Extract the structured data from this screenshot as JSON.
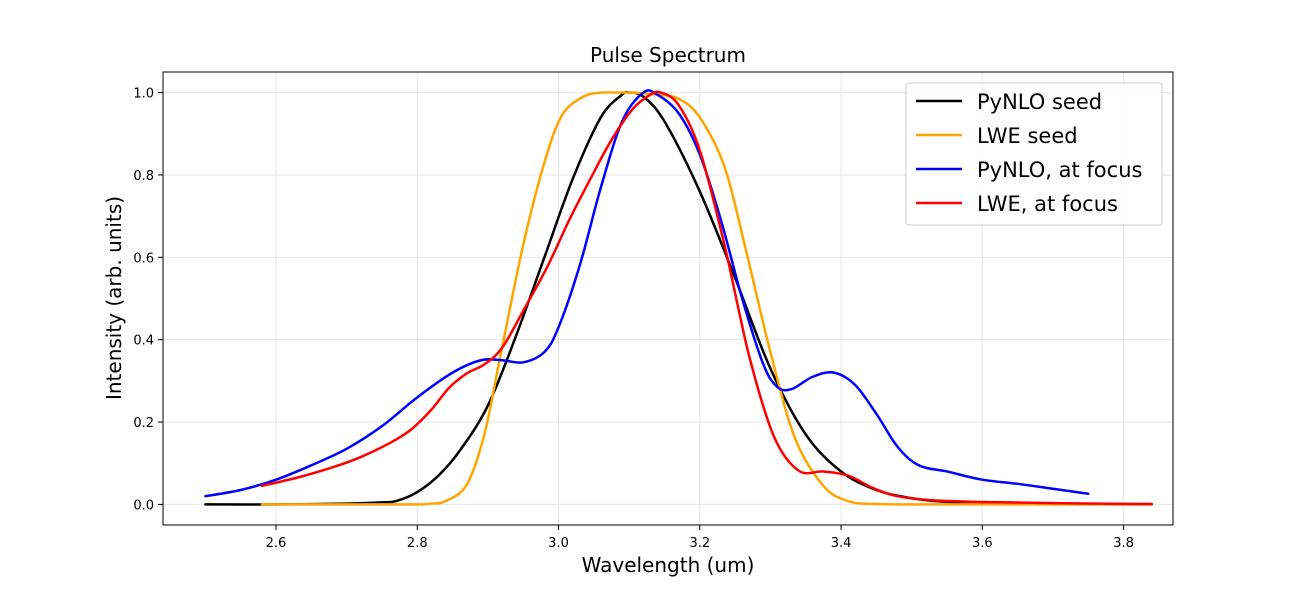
{
  "chart_data": {
    "type": "line",
    "title": "Pulse Spectrum",
    "xlabel": "Wavelength (um)",
    "ylabel": "Intensity (arb. units)",
    "xlim": [
      2.44,
      3.87
    ],
    "ylim": [
      -0.05,
      1.05
    ],
    "xticks": [
      2.6,
      2.8,
      3.0,
      3.2,
      3.4,
      3.6,
      3.8
    ],
    "yticks": [
      0.0,
      0.2,
      0.4,
      0.6,
      0.8,
      1.0
    ],
    "grid": true,
    "legend_position": "top-right",
    "series": [
      {
        "name": "PyNLO seed",
        "color": "#000000",
        "x": [
          2.5,
          2.6,
          2.7,
          2.75,
          2.77,
          2.8,
          2.83,
          2.86,
          2.9,
          2.94,
          2.98,
          3.02,
          3.06,
          3.09,
          3.1,
          3.12,
          3.15,
          3.2,
          3.25,
          3.3,
          3.35,
          3.4,
          3.45,
          3.5,
          3.55,
          3.6,
          3.7,
          3.8,
          3.84
        ],
        "y": [
          0.0,
          0.0,
          0.002,
          0.005,
          0.008,
          0.03,
          0.07,
          0.13,
          0.24,
          0.41,
          0.6,
          0.79,
          0.94,
          0.995,
          1.0,
          0.99,
          0.93,
          0.76,
          0.55,
          0.33,
          0.17,
          0.08,
          0.035,
          0.015,
          0.006,
          0.003,
          0.001,
          0.0,
          0.0
        ]
      },
      {
        "name": "LWE seed",
        "color": "#ffa500",
        "x": [
          2.58,
          2.7,
          2.8,
          2.82,
          2.84,
          2.87,
          2.895,
          2.92,
          2.95,
          2.98,
          3.005,
          3.035,
          3.06,
          3.08,
          3.1,
          3.14,
          3.17,
          3.2,
          3.235,
          3.265,
          3.3,
          3.335,
          3.375,
          3.41,
          3.45,
          3.55,
          3.7,
          3.84
        ],
        "y": [
          0.0,
          0.0,
          0.0,
          0.002,
          0.008,
          0.048,
          0.17,
          0.38,
          0.63,
          0.83,
          0.945,
          0.99,
          1.0,
          1.0,
          1.0,
          0.995,
          0.985,
          0.94,
          0.82,
          0.62,
          0.37,
          0.16,
          0.045,
          0.008,
          0.001,
          0.0,
          0.0,
          0.0
        ]
      },
      {
        "name": "PyNLO, at focus",
        "color": "#0000ff",
        "x": [
          2.5,
          2.55,
          2.6,
          2.65,
          2.7,
          2.75,
          2.8,
          2.85,
          2.89,
          2.92,
          2.95,
          2.98,
          3.0,
          3.03,
          3.06,
          3.09,
          3.12,
          3.14,
          3.17,
          3.2,
          3.23,
          3.26,
          3.29,
          3.31,
          3.33,
          3.36,
          3.39,
          3.42,
          3.45,
          3.48,
          3.51,
          3.55,
          3.6,
          3.65,
          3.7,
          3.75
        ],
        "y": [
          0.02,
          0.035,
          0.06,
          0.095,
          0.135,
          0.19,
          0.26,
          0.32,
          0.35,
          0.35,
          0.345,
          0.37,
          0.43,
          0.58,
          0.77,
          0.93,
          1.0,
          0.995,
          0.95,
          0.85,
          0.69,
          0.5,
          0.34,
          0.285,
          0.28,
          0.31,
          0.32,
          0.29,
          0.22,
          0.14,
          0.095,
          0.08,
          0.06,
          0.05,
          0.038,
          0.026
        ]
      },
      {
        "name": "LWE, at focus",
        "color": "#ff0000",
        "x": [
          2.58,
          2.63,
          2.68,
          2.72,
          2.76,
          2.79,
          2.82,
          2.845,
          2.87,
          2.895,
          2.92,
          2.95,
          2.985,
          3.015,
          3.045,
          3.075,
          3.105,
          3.13,
          3.145,
          3.17,
          3.2,
          3.235,
          3.27,
          3.305,
          3.34,
          3.375,
          3.41,
          3.445,
          3.48,
          3.53,
          3.6,
          3.7,
          3.84
        ],
        "y": [
          0.045,
          0.065,
          0.09,
          0.115,
          0.148,
          0.18,
          0.23,
          0.283,
          0.318,
          0.34,
          0.38,
          0.47,
          0.58,
          0.69,
          0.79,
          0.885,
          0.96,
          0.995,
          1.0,
          0.97,
          0.86,
          0.63,
          0.36,
          0.165,
          0.082,
          0.08,
          0.07,
          0.04,
          0.02,
          0.01,
          0.006,
          0.003,
          0.001
        ]
      }
    ]
  }
}
